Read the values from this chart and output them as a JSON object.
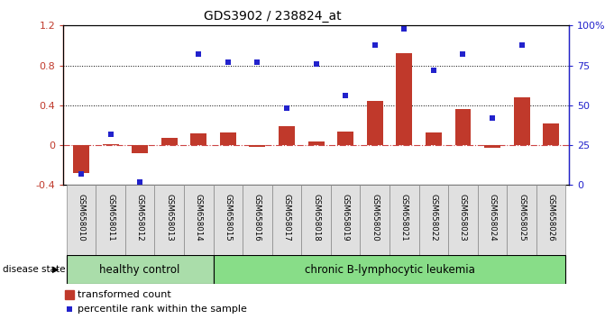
{
  "title": "GDS3902 / 238824_at",
  "samples": [
    "GSM658010",
    "GSM658011",
    "GSM658012",
    "GSM658013",
    "GSM658014",
    "GSM658015",
    "GSM658016",
    "GSM658017",
    "GSM658018",
    "GSM658019",
    "GSM658020",
    "GSM658021",
    "GSM658022",
    "GSM658023",
    "GSM658024",
    "GSM658025",
    "GSM658026"
  ],
  "bar_values": [
    -0.28,
    0.01,
    -0.08,
    0.07,
    0.12,
    0.13,
    -0.02,
    0.19,
    0.04,
    0.14,
    0.44,
    0.92,
    0.13,
    0.36,
    -0.03,
    0.48,
    0.22
  ],
  "dot_values": [
    0.07,
    0.32,
    0.02,
    null,
    0.82,
    0.77,
    0.77,
    0.48,
    0.76,
    0.56,
    0.88,
    0.98,
    0.72,
    0.82,
    0.42,
    0.88,
    null
  ],
  "healthy_control_count": 5,
  "bar_color": "#C0392B",
  "dot_color": "#2222CC",
  "ylim_left": [
    -0.4,
    1.2
  ],
  "ylim_right": [
    0,
    100
  ],
  "yticks_left": [
    -0.4,
    0.0,
    0.4,
    0.8,
    1.2
  ],
  "ytick_labels_left": [
    "-0.4",
    "0",
    "0.4",
    "0.8",
    "1.2"
  ],
  "yticks_right": [
    0,
    25,
    50,
    75,
    100
  ],
  "ytick_labels_right": [
    "0",
    "25",
    "50",
    "75",
    "100%"
  ],
  "hlines_dotted": [
    0.4,
    0.8
  ],
  "hline_dashdot": 0.0,
  "healthy_color": "#aaddaa",
  "leukemia_color": "#88dd88",
  "legend_bar_label": "transformed count",
  "legend_dot_label": "percentile rank within the sample",
  "disease_state_label": "disease state",
  "healthy_label": "healthy control",
  "leukemia_label": "chronic B-lymphocytic leukemia"
}
